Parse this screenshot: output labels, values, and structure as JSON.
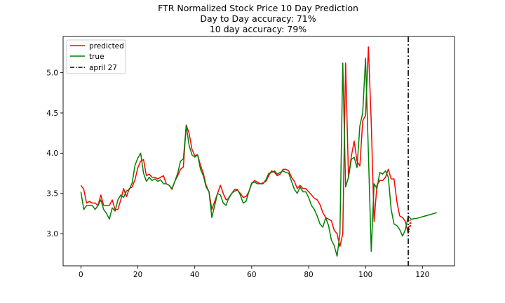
{
  "colors": {
    "predicted": "#ff0000",
    "true": "#008000",
    "marker": "#000000",
    "axis": "#000000",
    "background": "#ffffff"
  },
  "chart_data": {
    "type": "line",
    "title": "FTR Normalized Stock Price 10 Day Prediction",
    "subtitle_lines": [
      "Day to Day accuracy: 71%",
      "10 day accuracy: 79%"
    ],
    "xlabel": "",
    "ylabel": "",
    "xlim": [
      -6.25,
      131.25
    ],
    "ylim": [
      2.6,
      5.45
    ],
    "x_ticks": [
      0,
      20,
      40,
      60,
      80,
      100,
      120
    ],
    "y_ticks": [
      3.0,
      3.5,
      4.0,
      4.5,
      5.0
    ],
    "grid": false,
    "legend_position": "top-left",
    "legend": [
      "predicted",
      "true",
      "april 27"
    ],
    "vline": {
      "name": "april 27",
      "x": 115,
      "style": "dash-dot"
    },
    "series": [
      {
        "name": "predicted",
        "color": "#ff0000",
        "x": [
          0,
          1,
          2,
          3,
          4,
          5,
          6,
          7,
          8,
          9,
          10,
          11,
          12,
          13,
          14,
          15,
          16,
          17,
          18,
          19,
          20,
          21,
          22,
          23,
          24,
          25,
          26,
          27,
          28,
          29,
          30,
          31,
          32,
          33,
          34,
          35,
          36,
          37,
          38,
          39,
          40,
          41,
          42,
          43,
          44,
          45,
          46,
          47,
          48,
          49,
          50,
          51,
          52,
          53,
          54,
          55,
          56,
          57,
          58,
          59,
          60,
          61,
          62,
          63,
          64,
          65,
          66,
          67,
          68,
          69,
          70,
          71,
          72,
          73,
          74,
          75,
          76,
          77,
          78,
          79,
          80,
          81,
          82,
          83,
          84,
          85,
          86,
          87,
          88,
          89,
          90,
          91,
          92,
          93,
          94,
          95,
          96,
          97,
          98,
          99,
          100,
          101,
          102,
          103,
          104,
          105,
          106,
          107,
          108,
          109,
          110,
          111,
          112,
          113,
          114,
          115
        ],
        "y": [
          3.6,
          3.55,
          3.38,
          3.4,
          3.38,
          3.38,
          3.35,
          3.48,
          3.35,
          3.35,
          3.35,
          3.42,
          3.3,
          3.3,
          3.42,
          3.56,
          3.46,
          3.56,
          3.58,
          3.67,
          3.82,
          3.9,
          3.92,
          3.72,
          3.74,
          3.7,
          3.7,
          3.68,
          3.7,
          3.72,
          3.62,
          3.6,
          3.55,
          3.65,
          3.72,
          3.8,
          3.83,
          4.35,
          4.25,
          4.05,
          3.97,
          3.98,
          3.85,
          3.75,
          3.6,
          3.52,
          3.3,
          3.4,
          3.5,
          3.6,
          3.5,
          3.42,
          3.44,
          3.5,
          3.53,
          3.54,
          3.5,
          3.45,
          3.46,
          3.52,
          3.62,
          3.66,
          3.64,
          3.62,
          3.63,
          3.65,
          3.72,
          3.78,
          3.76,
          3.72,
          3.74,
          3.8,
          3.8,
          3.78,
          3.7,
          3.65,
          3.56,
          3.6,
          3.56,
          3.56,
          3.52,
          3.48,
          3.44,
          3.42,
          3.36,
          3.26,
          3.2,
          3.18,
          3.16,
          3.04,
          3.0,
          2.84,
          3.0,
          5.12,
          3.7,
          3.96,
          4.15,
          3.9,
          3.84,
          4.4,
          4.47,
          5.32,
          4.38,
          3.15,
          3.6,
          3.66,
          3.66,
          3.7,
          3.8,
          3.68,
          3.68,
          3.4,
          3.22,
          3.2,
          3.15,
          3.0
        ],
        "dashed_x": [
          115,
          115.2,
          115.4,
          115.6,
          115.8,
          116
        ],
        "dashed_y": [
          3.0,
          3.1,
          3.02,
          3.2,
          3.08,
          3.16
        ]
      },
      {
        "name": "true",
        "color": "#008000",
        "x": [
          0,
          1,
          2,
          3,
          4,
          5,
          6,
          7,
          8,
          9,
          10,
          11,
          12,
          13,
          14,
          15,
          16,
          17,
          18,
          19,
          20,
          21,
          22,
          23,
          24,
          25,
          26,
          27,
          28,
          29,
          30,
          31,
          32,
          33,
          34,
          35,
          36,
          37,
          38,
          39,
          40,
          41,
          42,
          43,
          44,
          45,
          46,
          47,
          48,
          49,
          50,
          51,
          52,
          53,
          54,
          55,
          56,
          57,
          58,
          59,
          60,
          61,
          62,
          63,
          64,
          65,
          66,
          67,
          68,
          69,
          70,
          71,
          72,
          73,
          74,
          75,
          76,
          77,
          78,
          79,
          80,
          81,
          82,
          83,
          84,
          85,
          86,
          87,
          88,
          89,
          90,
          91,
          92,
          93,
          94,
          95,
          96,
          97,
          98,
          99,
          100,
          101,
          102,
          103,
          104,
          105,
          106,
          107,
          108,
          109,
          110,
          111,
          112,
          113,
          114,
          115,
          116,
          117,
          118,
          119,
          120,
          121,
          122,
          123,
          124,
          125
        ],
        "y": [
          3.52,
          3.3,
          3.35,
          3.35,
          3.35,
          3.3,
          3.35,
          3.42,
          3.3,
          3.25,
          3.18,
          3.32,
          3.28,
          3.42,
          3.48,
          3.45,
          3.53,
          3.55,
          3.63,
          3.85,
          3.94,
          4.0,
          3.75,
          3.65,
          3.7,
          3.66,
          3.68,
          3.65,
          3.67,
          3.62,
          3.62,
          3.6,
          3.56,
          3.65,
          3.75,
          3.9,
          3.93,
          4.34,
          4.1,
          3.98,
          3.95,
          3.98,
          3.8,
          3.72,
          3.58,
          3.52,
          3.2,
          3.35,
          3.5,
          3.48,
          3.38,
          3.35,
          3.45,
          3.5,
          3.55,
          3.55,
          3.48,
          3.38,
          3.4,
          3.52,
          3.63,
          3.64,
          3.62,
          3.62,
          3.62,
          3.67,
          3.75,
          3.76,
          3.78,
          3.74,
          3.76,
          3.78,
          3.76,
          3.75,
          3.65,
          3.55,
          3.5,
          3.58,
          3.52,
          3.52,
          3.45,
          3.35,
          3.3,
          3.22,
          3.12,
          3.08,
          3.2,
          3.1,
          2.92,
          2.85,
          2.72,
          3.0,
          5.12,
          3.58,
          3.7,
          3.92,
          3.95,
          3.82,
          4.34,
          4.5,
          5.18,
          4.0,
          2.78,
          3.62,
          3.56,
          3.76,
          3.74,
          3.78,
          3.7,
          3.3,
          3.12,
          3.1,
          3.05,
          2.97,
          3.05,
          3.22,
          3.18,
          3.185,
          3.19,
          3.2,
          3.21,
          3.22,
          3.23,
          3.24,
          3.25,
          3.26
        ]
      }
    ]
  }
}
